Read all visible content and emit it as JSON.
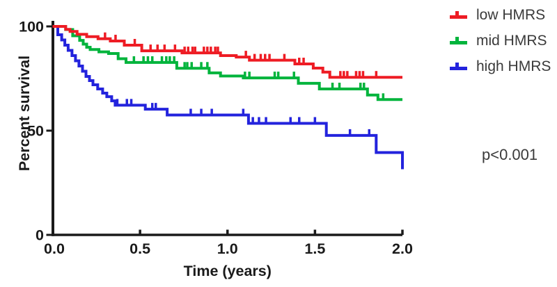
{
  "chart_data": {
    "type": "line",
    "subtype": "kaplan-meier-step",
    "title": "",
    "xlabel": "Time (years)",
    "ylabel": "Percent survival",
    "xlim": [
      0,
      2
    ],
    "ylim": [
      0,
      100
    ],
    "grid": false,
    "legend_position": "right-outside",
    "axis_color": "#1a1a1a",
    "annotation_color": "#3a3a3a",
    "xticks": [
      {
        "value": 0.0,
        "label": "0.0"
      },
      {
        "value": 0.5,
        "label": "0.5"
      },
      {
        "value": 1.0,
        "label": "1.0"
      },
      {
        "value": 1.5,
        "label": "1.5"
      },
      {
        "value": 2.0,
        "label": "2.0"
      }
    ],
    "yticks": [
      {
        "value": 0,
        "label": "0"
      },
      {
        "value": 50,
        "label": "50"
      },
      {
        "value": 100,
        "label": "100"
      }
    ],
    "annotation": {
      "text": "p<0.001"
    },
    "series": [
      {
        "name": "high HMRS",
        "color": "#2323dd",
        "steps": [
          [
            0,
            100
          ],
          [
            0.03,
            96
          ],
          [
            0.052,
            93.5
          ],
          [
            0.07,
            91
          ],
          [
            0.089,
            88.5
          ],
          [
            0.111,
            86
          ],
          [
            0.131,
            83.5
          ],
          [
            0.151,
            81
          ],
          [
            0.171,
            78.5
          ],
          [
            0.191,
            76
          ],
          [
            0.211,
            74
          ],
          [
            0.231,
            72
          ],
          [
            0.258,
            70
          ],
          [
            0.286,
            68
          ],
          [
            0.31,
            66.3
          ],
          [
            0.338,
            64.3
          ],
          [
            0.358,
            62.2
          ],
          [
            0.53,
            60.3
          ],
          [
            0.655,
            57.5
          ],
          [
            1.12,
            53.5
          ],
          [
            1.565,
            47.7
          ],
          [
            1.85,
            39.5
          ],
          [
            2.0,
            31.5
          ]
        ],
        "censor_times": [
          0.37,
          0.425,
          0.45,
          0.57,
          0.59,
          0.79,
          0.85,
          0.91,
          1.09,
          1.145,
          1.18,
          1.22,
          1.36,
          1.41,
          1.5,
          1.7,
          1.81
        ]
      },
      {
        "name": "mid HMRS",
        "color": "#00b43c",
        "steps": [
          [
            0,
            100
          ],
          [
            0.075,
            98.5
          ],
          [
            0.115,
            95.5
          ],
          [
            0.155,
            93.3
          ],
          [
            0.175,
            91.5
          ],
          [
            0.195,
            90
          ],
          [
            0.215,
            88.9
          ],
          [
            0.265,
            87.8
          ],
          [
            0.32,
            87
          ],
          [
            0.375,
            84.5
          ],
          [
            0.42,
            82.7
          ],
          [
            0.71,
            79.9
          ],
          [
            0.895,
            77.7
          ],
          [
            0.96,
            76.2
          ],
          [
            1.09,
            75.3
          ],
          [
            1.405,
            72.7
          ],
          [
            1.525,
            70
          ],
          [
            1.8,
            67.1
          ],
          [
            1.86,
            64.9
          ]
        ],
        "censor_times": [
          0.465,
          0.52,
          0.545,
          0.57,
          0.625,
          0.65,
          0.67,
          0.695,
          0.755,
          0.77,
          0.795,
          0.85,
          0.885,
          1.1,
          1.125,
          1.27,
          1.29,
          1.38,
          1.6,
          1.64,
          1.76,
          1.78,
          1.89
        ]
      },
      {
        "name": "low HMRS",
        "color": "#ee1c24",
        "steps": [
          [
            0,
            100
          ],
          [
            0.075,
            98.6
          ],
          [
            0.1,
            97.6
          ],
          [
            0.14,
            96.2
          ],
          [
            0.195,
            95.1
          ],
          [
            0.26,
            94.1
          ],
          [
            0.33,
            93
          ],
          [
            0.41,
            91
          ],
          [
            0.51,
            88.3
          ],
          [
            0.74,
            87.3
          ],
          [
            0.96,
            86
          ],
          [
            1.05,
            85.3
          ],
          [
            1.125,
            83.8
          ],
          [
            1.385,
            82
          ],
          [
            1.49,
            80
          ],
          [
            1.545,
            78.1
          ],
          [
            1.585,
            75.6
          ]
        ],
        "censor_times": [
          0.3,
          0.36,
          0.47,
          0.56,
          0.6,
          0.64,
          0.7,
          0.755,
          0.775,
          0.8,
          0.815,
          0.865,
          0.885,
          0.905,
          0.93,
          0.945,
          1.105,
          1.155,
          1.19,
          1.215,
          1.24,
          1.325,
          1.41,
          1.435,
          1.645,
          1.665,
          1.685,
          1.735,
          1.755,
          1.775,
          1.85
        ]
      }
    ]
  },
  "legend": {
    "items": [
      {
        "label": "low HMRS"
      },
      {
        "label": "mid HMRS"
      },
      {
        "label": "high HMRS"
      }
    ]
  }
}
